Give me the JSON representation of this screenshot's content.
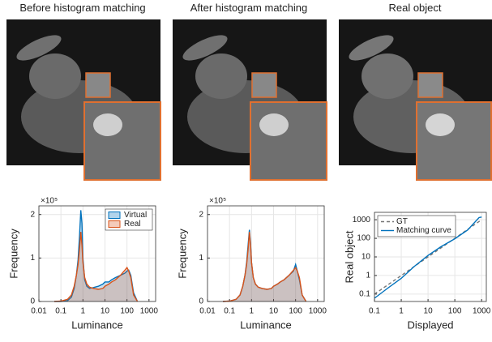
{
  "images": [
    {
      "title": "Before histogram matching"
    },
    {
      "title": "After histogram matching"
    },
    {
      "title": "Real object"
    }
  ],
  "chart_data": [
    {
      "type": "line",
      "xlabel": "Luminance",
      "ylabel": "Frequency",
      "y_scale_label": "×10⁵",
      "log_x": true,
      "log_y": false,
      "grid": true,
      "fill_area": true,
      "legend": "upper right",
      "xlim": [
        0.01,
        2000
      ],
      "xticks": [
        0.01,
        0.1,
        1,
        10,
        100,
        1000
      ],
      "ylim": [
        0,
        2.2
      ],
      "yticks": [
        0,
        1,
        2
      ],
      "x": [
        0.05,
        0.1,
        0.2,
        0.3,
        0.4,
        0.5,
        0.6,
        0.7,
        0.8,
        0.9,
        1,
        1.2,
        1.5,
        2,
        3,
        5,
        8,
        10,
        15,
        20,
        30,
        50,
        80,
        100,
        120,
        150,
        200,
        300
      ],
      "series": [
        {
          "name": "Virtual",
          "color": "#0072bd",
          "values": [
            0,
            0,
            0.02,
            0.1,
            0.3,
            0.6,
            0.95,
            1.5,
            2.1,
            1.8,
            1.0,
            0.5,
            0.35,
            0.3,
            0.32,
            0.35,
            0.4,
            0.45,
            0.45,
            0.5,
            0.55,
            0.6,
            0.65,
            0.7,
            0.72,
            0.6,
            0.2,
            0
          ]
        },
        {
          "name": "Real",
          "color": "#d95319",
          "values": [
            0,
            0.01,
            0.05,
            0.15,
            0.35,
            0.6,
            0.85,
            1.2,
            1.6,
            1.3,
            0.9,
            0.55,
            0.4,
            0.33,
            0.3,
            0.28,
            0.3,
            0.35,
            0.4,
            0.45,
            0.5,
            0.6,
            0.72,
            0.78,
            0.7,
            0.55,
            0.15,
            0
          ]
        }
      ]
    },
    {
      "type": "line",
      "xlabel": "Luminance",
      "ylabel": "Frequency",
      "y_scale_label": "×10⁵",
      "log_x": true,
      "log_y": false,
      "grid": true,
      "fill_area": true,
      "xlim": [
        0.01,
        2000
      ],
      "xticks": [
        0.01,
        0.1,
        1,
        10,
        100,
        1000
      ],
      "ylim": [
        0,
        2.2
      ],
      "yticks": [
        0,
        1,
        2
      ],
      "x": [
        0.05,
        0.1,
        0.2,
        0.3,
        0.4,
        0.5,
        0.6,
        0.7,
        0.8,
        0.9,
        1,
        1.2,
        1.5,
        2,
        3,
        5,
        8,
        10,
        15,
        20,
        30,
        50,
        80,
        100,
        120,
        150,
        200,
        300
      ],
      "series": [
        {
          "name": "Virtual",
          "color": "#0072bd",
          "values": [
            0,
            0.01,
            0.05,
            0.15,
            0.35,
            0.6,
            0.9,
            1.3,
            1.65,
            1.35,
            0.9,
            0.55,
            0.4,
            0.33,
            0.3,
            0.28,
            0.3,
            0.35,
            0.4,
            0.45,
            0.5,
            0.6,
            0.7,
            0.85,
            0.7,
            0.5,
            0.15,
            0
          ]
        },
        {
          "name": "Real",
          "color": "#d95319",
          "values": [
            0,
            0.01,
            0.05,
            0.15,
            0.35,
            0.6,
            0.85,
            1.2,
            1.6,
            1.3,
            0.9,
            0.55,
            0.4,
            0.33,
            0.3,
            0.28,
            0.3,
            0.35,
            0.4,
            0.45,
            0.5,
            0.6,
            0.72,
            0.78,
            0.7,
            0.55,
            0.15,
            0
          ]
        }
      ]
    },
    {
      "type": "line",
      "xlabel": "Displayed",
      "ylabel": "Real object",
      "log_x": true,
      "log_y": true,
      "grid": true,
      "fill_area": false,
      "legend": "upper left",
      "xlim": [
        0.1,
        1500
      ],
      "xticks": [
        0.1,
        1,
        10,
        100,
        1000
      ],
      "ylim": [
        0.04,
        2500
      ],
      "yticks": [
        0.1,
        1,
        10,
        100,
        1000
      ],
      "series": [
        {
          "name": "GT",
          "color": "#777777",
          "dashed": true,
          "x": [
            0.1,
            1000
          ],
          "values": [
            0.1,
            1000
          ]
        },
        {
          "name": "Matching curve",
          "color": "#0072bd",
          "x": [
            0.1,
            0.3,
            1,
            3,
            10,
            30,
            100,
            300,
            800,
            1000
          ],
          "values": [
            0.06,
            0.2,
            0.7,
            3,
            12,
            35,
            95,
            280,
            1300,
            1400
          ]
        }
      ]
    }
  ]
}
